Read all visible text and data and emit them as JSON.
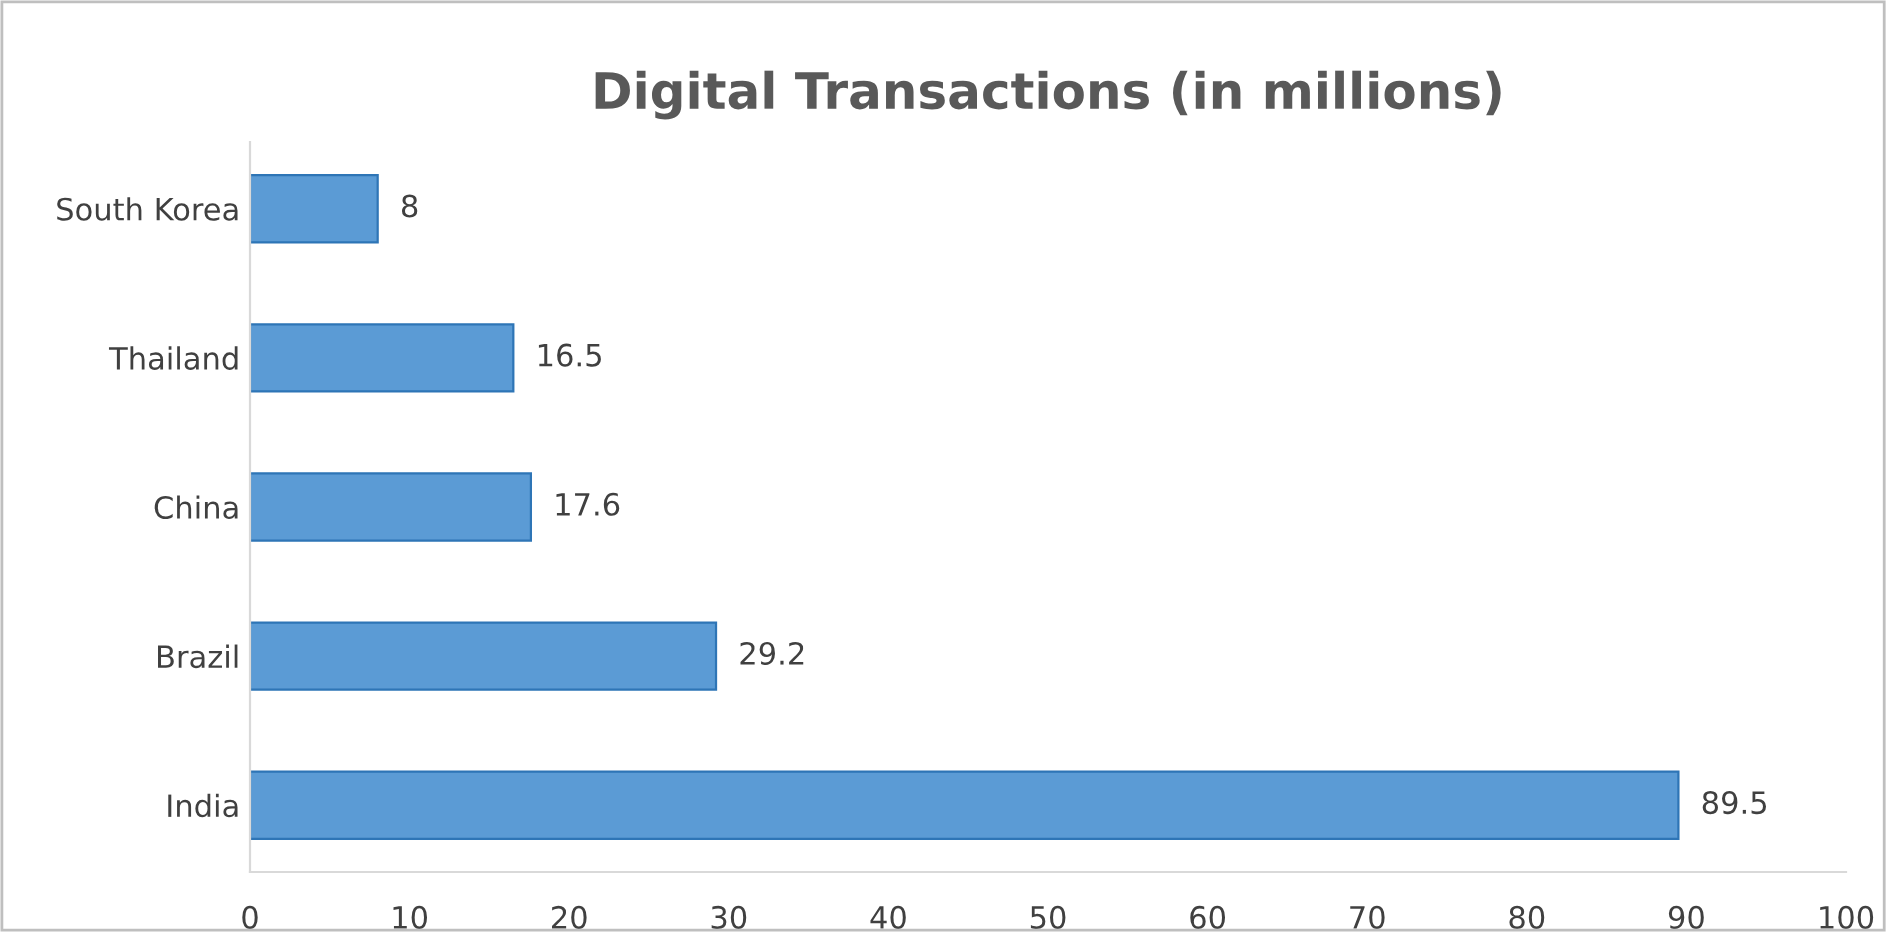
{
  "chart_data": {
    "type": "bar",
    "orientation": "horizontal",
    "title": "Digital Transactions (in millions)",
    "categories": [
      "South Korea",
      "Thailand",
      "China",
      "Brazil",
      "India"
    ],
    "values": [
      8,
      16.5,
      17.6,
      29.2,
      89.5
    ],
    "color": "#5b9bd5",
    "xlim": [
      0,
      100
    ],
    "xticks": [
      0,
      10,
      20,
      30,
      40,
      50,
      60,
      70,
      80,
      90,
      100
    ],
    "grid": false,
    "data_labels": true
  }
}
